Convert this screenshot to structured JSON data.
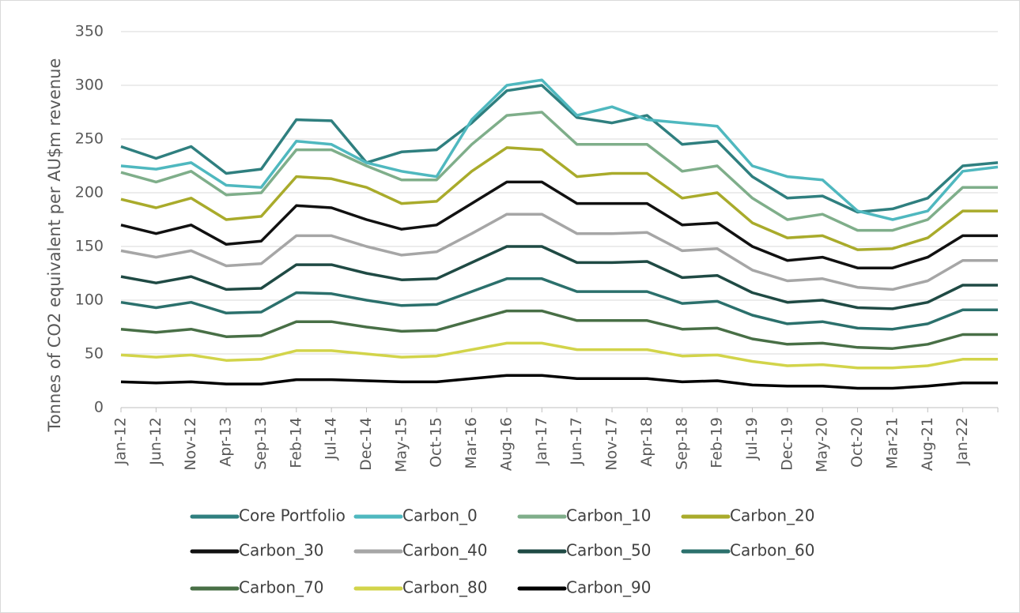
{
  "chart_data": {
    "type": "line",
    "y_label": "Tonnes of CO2 equivalent per AU$m revenue",
    "categories": [
      "Jan-12",
      "Jun-12",
      "Nov-12",
      "Apr-13",
      "Sep-13",
      "Feb-14",
      "Jul-14",
      "Dec-14",
      "May-15",
      "Oct-15",
      "Mar-16",
      "Aug-16",
      "Jan-17",
      "Jun-17",
      "Nov-17",
      "Apr-18",
      "Sep-18",
      "Feb-19",
      "Jul-19",
      "Dec-19",
      "May-20",
      "Oct-20",
      "Mar-21",
      "Aug-21",
      "Jan-22",
      null
    ],
    "ylim": [
      0,
      350
    ],
    "yticks": [
      0,
      50,
      100,
      150,
      200,
      250,
      300,
      350
    ],
    "grid": true,
    "series": [
      {
        "name": "Core Portfolio",
        "color": "#2f7f7f",
        "values": [
          243,
          232,
          243,
          218,
          222,
          268,
          267,
          228,
          238,
          240,
          265,
          295,
          300,
          270,
          265,
          272,
          245,
          248,
          215,
          195,
          197,
          182,
          185,
          195,
          225,
          228
        ]
      },
      {
        "name": "Carbon_0",
        "color": "#4fb8bf",
        "values": [
          225,
          222,
          228,
          207,
          205,
          248,
          245,
          228,
          220,
          215,
          268,
          300,
          305,
          272,
          280,
          268,
          265,
          262,
          225,
          215,
          212,
          183,
          175,
          183,
          220,
          224
        ]
      },
      {
        "name": "Carbon_10",
        "color": "#7fae8a",
        "values": [
          219,
          210,
          220,
          198,
          200,
          240,
          240,
          225,
          212,
          212,
          245,
          272,
          275,
          245,
          245,
          245,
          220,
          225,
          195,
          175,
          180,
          165,
          165,
          175,
          205,
          205
        ]
      },
      {
        "name": "Carbon_20",
        "color": "#a9ab2b",
        "values": [
          194,
          186,
          195,
          175,
          178,
          215,
          213,
          205,
          190,
          192,
          220,
          242,
          240,
          215,
          218,
          218,
          195,
          200,
          172,
          158,
          160,
          147,
          148,
          158,
          183,
          183
        ]
      },
      {
        "name": "Carbon_30",
        "color": "#111111",
        "values": [
          170,
          162,
          170,
          152,
          155,
          188,
          186,
          175,
          166,
          170,
          190,
          210,
          210,
          190,
          190,
          190,
          170,
          172,
          150,
          137,
          140,
          130,
          130,
          140,
          160,
          160
        ]
      },
      {
        "name": "Carbon_40",
        "color": "#a6a6a6",
        "values": [
          146,
          140,
          146,
          132,
          134,
          160,
          160,
          150,
          142,
          145,
          162,
          180,
          180,
          162,
          162,
          163,
          146,
          148,
          128,
          118,
          120,
          112,
          110,
          118,
          137,
          137
        ]
      },
      {
        "name": "Carbon_50",
        "color": "#1f4a44",
        "values": [
          122,
          116,
          122,
          110,
          111,
          133,
          133,
          125,
          119,
          120,
          135,
          150,
          150,
          135,
          135,
          136,
          121,
          123,
          107,
          98,
          100,
          93,
          92,
          98,
          114,
          114
        ]
      },
      {
        "name": "Carbon_60",
        "color": "#2b706c",
        "values": [
          98,
          93,
          98,
          88,
          89,
          107,
          106,
          100,
          95,
          96,
          108,
          120,
          120,
          108,
          108,
          108,
          97,
          99,
          86,
          78,
          80,
          74,
          73,
          78,
          91,
          91
        ]
      },
      {
        "name": "Carbon_70",
        "color": "#486f46",
        "values": [
          73,
          70,
          73,
          66,
          67,
          80,
          80,
          75,
          71,
          72,
          81,
          90,
          90,
          81,
          81,
          81,
          73,
          74,
          64,
          59,
          60,
          56,
          55,
          59,
          68,
          68
        ]
      },
      {
        "name": "Carbon_80",
        "color": "#d2d44a",
        "values": [
          49,
          47,
          49,
          44,
          45,
          53,
          53,
          50,
          47,
          48,
          54,
          60,
          60,
          54,
          54,
          54,
          48,
          49,
          43,
          39,
          40,
          37,
          37,
          39,
          45,
          45
        ]
      },
      {
        "name": "Carbon_90",
        "color": "#000000",
        "values": [
          24,
          23,
          24,
          22,
          22,
          26,
          26,
          25,
          24,
          24,
          27,
          30,
          30,
          27,
          27,
          27,
          24,
          25,
          21,
          20,
          20,
          18,
          18,
          20,
          23,
          23
        ]
      }
    ]
  }
}
